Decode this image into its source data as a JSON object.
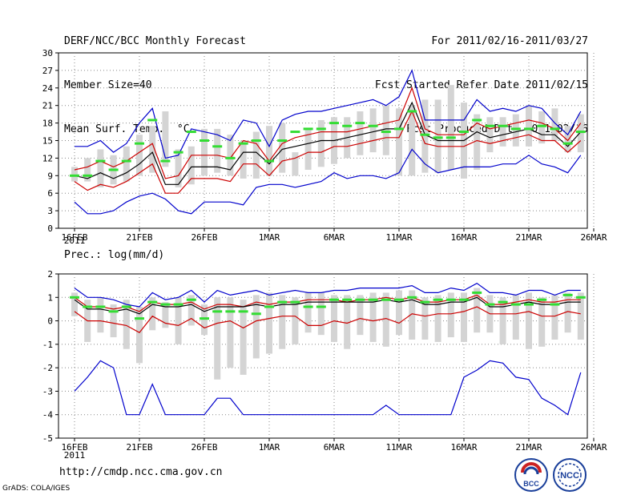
{
  "header": {
    "title": "DERF/NCC/BCC Monthly Forecast",
    "member_size": "Member Size=40",
    "variable": "Mean Surf. Temp.: °C",
    "period": "For 2011/02/16-2011/03/27",
    "started_refer": "Fcst Started Refer Date 2011/02/15",
    "produced": "Fcst Produced Date 2011/02/16"
  },
  "footer": {
    "url": "http://cmdp.ncc.cma.gov.cn",
    "grads": "GrADS: COLA/IGES",
    "logo_left_text": "BCC",
    "logo_right_text": "NCC"
  },
  "colors": {
    "bar": "#d4d4d4",
    "ens_mean": "#000000",
    "spread": "#cc0000",
    "extreme": "#0000cc",
    "clim": "#33dd33",
    "grid": "#888888"
  },
  "chart_data": [
    {
      "type": "line",
      "title": "Mean Surf. Temp.: °C",
      "x_tick_labels": [
        "16FEB",
        "21FEB",
        "26FEB",
        "1MAR",
        "6MAR",
        "11MAR",
        "16MAR",
        "21MAR",
        "26MAR"
      ],
      "x_year_label": "2011",
      "ylim": [
        0,
        30
      ],
      "y_ticks": [
        0,
        3,
        6,
        9,
        12,
        15,
        18,
        21,
        24,
        27,
        30
      ],
      "grid": true,
      "x": [
        1,
        2,
        3,
        4,
        5,
        6,
        7,
        8,
        9,
        10,
        11,
        12,
        13,
        14,
        15,
        16,
        17,
        18,
        19,
        20,
        21,
        22,
        23,
        24,
        25,
        26,
        27,
        28,
        29,
        30,
        31,
        32,
        33,
        34,
        35,
        36,
        37,
        38,
        39,
        40
      ],
      "series": [
        {
          "name": "bar_low",
          "values": [
            8,
            8,
            7,
            7.5,
            8,
            9,
            9.5,
            10.5,
            7,
            7.5,
            9,
            9.5,
            9,
            8.5,
            8.5,
            9,
            9.5,
            9,
            10,
            10.5,
            11,
            12,
            12.5,
            13,
            12.5,
            9,
            9,
            9.5,
            9.5,
            10,
            8.5,
            10,
            13,
            14,
            14,
            14,
            14.5,
            15,
            13,
            13
          ]
        },
        {
          "name": "bar_high",
          "values": [
            10.5,
            12,
            13.5,
            12.5,
            14,
            16,
            17.5,
            20,
            13.5,
            14,
            17,
            17,
            16,
            15,
            16.5,
            17.5,
            18,
            13,
            17,
            18.5,
            19,
            19,
            20,
            20.5,
            21,
            20.5,
            21,
            22,
            22,
            24.5,
            21.5,
            19.5,
            19,
            19,
            19.5,
            21,
            20,
            20.5,
            17.5,
            19.5
          ]
        },
        {
          "name": "max",
          "values": [
            14,
            14,
            15,
            13,
            14.5,
            18,
            20.5,
            12,
            12.5,
            17,
            16.5,
            16,
            15,
            18.5,
            18,
            14,
            18.5,
            19.5,
            20,
            20,
            20.5,
            21,
            21.5,
            22,
            21,
            22.5,
            27,
            18.5,
            18.5,
            18.5,
            18.5,
            22,
            20,
            20.5,
            20,
            21,
            20.5,
            18,
            16,
            20
          ]
        },
        {
          "name": "spread_high",
          "values": [
            10,
            10.5,
            11.5,
            10.5,
            11.5,
            13,
            14.5,
            8.5,
            9,
            12.5,
            12.5,
            12.5,
            12,
            15,
            14.5,
            11.5,
            14.5,
            15.5,
            16,
            16.5,
            16.5,
            16.5,
            17,
            17.5,
            18,
            18.5,
            24,
            17,
            16,
            16,
            16,
            18,
            17,
            17.5,
            18,
            18.5,
            18,
            17,
            15,
            18
          ]
        },
        {
          "name": "mean",
          "values": [
            9,
            8.5,
            9.5,
            8.5,
            9.5,
            11,
            13,
            7.5,
            7.5,
            10.5,
            10.5,
            10.5,
            10,
            13,
            13,
            11,
            13.5,
            14,
            14.5,
            15,
            15,
            15.5,
            16,
            16.5,
            17,
            17,
            21.5,
            16,
            15,
            15,
            15,
            16.5,
            15.5,
            16,
            16.5,
            17,
            16,
            16,
            14,
            16.5
          ]
        },
        {
          "name": "spread_low",
          "values": [
            8,
            6.5,
            7.5,
            7,
            8,
            9.5,
            11,
            6,
            6,
            8.5,
            8.5,
            8.5,
            8,
            11,
            11,
            9,
            11.5,
            12,
            13,
            13,
            14,
            14,
            14.5,
            15,
            15.5,
            15.5,
            20,
            14.5,
            14,
            14,
            14,
            15,
            14.5,
            15,
            15.5,
            16,
            15,
            15,
            13,
            15
          ]
        },
        {
          "name": "min",
          "values": [
            4.5,
            2.5,
            2.5,
            3,
            4.5,
            5.5,
            6,
            5,
            3,
            2.5,
            4.5,
            4.5,
            4.5,
            4,
            7,
            7.5,
            7.5,
            7,
            7.5,
            8,
            9.5,
            8.5,
            9,
            9,
            8.5,
            9.5,
            13.5,
            11,
            9.5,
            10,
            10.5,
            10.5,
            10.5,
            11,
            11,
            12.5,
            11,
            10.5,
            9.5,
            12.5
          ]
        },
        {
          "name": "climatology",
          "values": [
            9,
            9,
            11.5,
            10,
            11.5,
            14.5,
            18.5,
            11.5,
            13,
            16.5,
            15,
            14,
            12,
            14.5,
            15,
            11.5,
            15,
            16.5,
            17,
            17,
            18,
            17.5,
            18,
            17.5,
            16.5,
            17,
            20,
            16,
            15.5,
            15.5,
            16.5,
            18.5,
            17.5,
            17.5,
            17,
            17,
            17.5,
            17,
            14.5,
            16.5
          ]
        }
      ]
    },
    {
      "type": "line",
      "title": "Prec.: log(mm/d)",
      "x_tick_labels": [
        "16FEB",
        "21FEB",
        "26FEB",
        "1MAR",
        "6MAR",
        "11MAR",
        "16MAR",
        "21MAR",
        "26MAR"
      ],
      "x_year_label": "2011",
      "ylim": [
        -5,
        2
      ],
      "y_ticks": [
        -5,
        -4,
        -3,
        -2,
        -1,
        0,
        1,
        2
      ],
      "grid": true,
      "x": [
        1,
        2,
        3,
        4,
        5,
        6,
        7,
        8,
        9,
        10,
        11,
        12,
        13,
        14,
        15,
        16,
        17,
        18,
        19,
        20,
        21,
        22,
        23,
        24,
        25,
        26,
        27,
        28,
        29,
        30,
        31,
        32,
        33,
        34,
        35,
        36,
        37,
        38,
        39,
        40
      ],
      "series": [
        {
          "name": "bar_low",
          "values": [
            0.2,
            -0.9,
            -0.5,
            -0.7,
            -1.2,
            -1.8,
            -0.4,
            -0.3,
            -1,
            -0.2,
            -0.6,
            -2.5,
            -2,
            -2.3,
            -1.6,
            -1.4,
            -1.2,
            -1,
            -0.5,
            -0.6,
            -0.9,
            -1.2,
            -0.6,
            -0.9,
            -1.1,
            -0.6,
            -0.8,
            -0.8,
            -0.9,
            -0.7,
            -0.9,
            -0.5,
            -0.5,
            -1,
            -0.8,
            -1.2,
            -1.1,
            -0.8,
            -0.5,
            -0.8
          ]
        },
        {
          "name": "bar_high",
          "values": [
            1.2,
            0.9,
            1,
            0.7,
            0.9,
            0.6,
            1,
            0.8,
            1,
            1.1,
            0.7,
            1,
            1,
            0.9,
            1.1,
            1.2,
            1.1,
            1,
            1.2,
            1.2,
            1.1,
            1.1,
            1.1,
            1.2,
            1.2,
            1.3,
            1.3,
            1,
            1.1,
            1.2,
            1.2,
            1.4,
            1.1,
            1,
            1.1,
            1.2,
            1,
            1.1,
            1.2,
            1.2
          ]
        },
        {
          "name": "max",
          "values": [
            1.4,
            1,
            1,
            0.9,
            0.7,
            0.6,
            1.2,
            0.9,
            1,
            1.3,
            0.8,
            1.3,
            1.1,
            1.2,
            1.3,
            1.1,
            1.2,
            1.3,
            1.2,
            1.2,
            1.3,
            1.3,
            1.4,
            1.4,
            1.4,
            1.4,
            1.5,
            1.2,
            1.2,
            1.4,
            1.3,
            1.6,
            1.2,
            1.2,
            1.1,
            1.3,
            1.3,
            1.1,
            1.3,
            1.3
          ]
        },
        {
          "name": "spread_high",
          "values": [
            1,
            0.6,
            0.6,
            0.5,
            0.6,
            0.4,
            0.8,
            0.7,
            0.7,
            0.8,
            0.5,
            0.7,
            0.7,
            0.6,
            0.8,
            0.7,
            0.8,
            0.8,
            0.9,
            0.9,
            0.9,
            0.8,
            0.9,
            0.9,
            1,
            0.9,
            1,
            0.8,
            0.8,
            0.9,
            0.9,
            1.1,
            0.7,
            0.7,
            0.8,
            0.9,
            0.8,
            0.8,
            0.9,
            0.9
          ]
        },
        {
          "name": "mean",
          "values": [
            0.9,
            0.5,
            0.5,
            0.4,
            0.5,
            0.3,
            0.7,
            0.6,
            0.6,
            0.7,
            0.4,
            0.6,
            0.6,
            0.6,
            0.7,
            0.6,
            0.7,
            0.7,
            0.8,
            0.8,
            0.8,
            0.8,
            0.8,
            0.8,
            0.9,
            0.8,
            0.9,
            0.7,
            0.7,
            0.8,
            0.8,
            1,
            0.6,
            0.6,
            0.7,
            0.8,
            0.7,
            0.7,
            0.8,
            0.8
          ]
        },
        {
          "name": "spread_low",
          "values": [
            0.4,
            0,
            0,
            -0.1,
            -0.2,
            -0.5,
            0.2,
            -0.1,
            -0.2,
            0.1,
            -0.3,
            -0.1,
            0,
            -0.3,
            0,
            0.1,
            0.2,
            0.2,
            -0.2,
            -0.2,
            0,
            -0.1,
            0.1,
            0,
            0.1,
            -0.1,
            0.3,
            0.2,
            0.3,
            0.3,
            0.4,
            0.6,
            0.3,
            0.3,
            0.3,
            0.4,
            0.2,
            0.2,
            0.4,
            0.3
          ]
        },
        {
          "name": "min",
          "values": [
            -3,
            -2.4,
            -1.7,
            -2,
            -4,
            -4,
            -2.7,
            -4,
            -4,
            -4,
            -4,
            -3.3,
            -3.3,
            -4,
            -4,
            -4,
            -4,
            -4,
            -4,
            -4,
            -4,
            -4,
            -4,
            -4,
            -3.6,
            -4,
            -4,
            -4,
            -4,
            -4,
            -2.4,
            -2.1,
            -1.7,
            -1.8,
            -2.4,
            -2.5,
            -3.3,
            -3.6,
            -4,
            -2.2
          ]
        },
        {
          "name": "climatology",
          "values": [
            1,
            0.6,
            0.6,
            0.4,
            0.6,
            0.1,
            0.8,
            0.7,
            0.7,
            0.9,
            0.1,
            0.4,
            0.4,
            0.4,
            0.3,
            0.6,
            0.8,
            0.8,
            0.6,
            0.6,
            0.9,
            0.9,
            0.9,
            0.9,
            0.9,
            0.9,
            1,
            0.8,
            0.9,
            0.9,
            0.9,
            1.2,
            0.7,
            0.8,
            0.7,
            0.7,
            0.9,
            0.7,
            1.1,
            1
          ]
        }
      ]
    }
  ]
}
